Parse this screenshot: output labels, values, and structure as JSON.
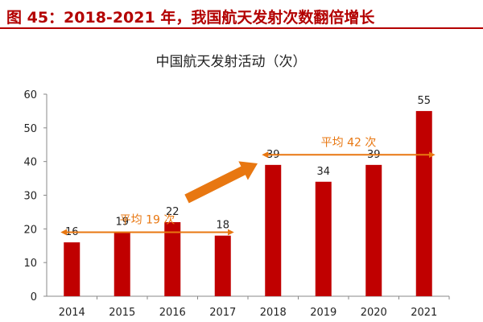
{
  "header": {
    "title": "图 45：2018-2021 年，我国航天发射次数翻倍增长"
  },
  "colors": {
    "bar": "#c00000",
    "annotation": "#e87711",
    "header": "#b30000",
    "axis": "#888888"
  },
  "chart_data": {
    "type": "bar",
    "title": "中国航天发射活动（次）",
    "xlabel": "",
    "ylabel": "",
    "categories": [
      "2014",
      "2015",
      "2016",
      "2017",
      "2018",
      "2019",
      "2020",
      "2021"
    ],
    "values": [
      16,
      19,
      22,
      18,
      39,
      34,
      39,
      55
    ],
    "ylim": [
      0,
      60
    ],
    "yticks": [
      "0",
      "10",
      "20",
      "30",
      "40",
      "50",
      "60"
    ],
    "grid": false,
    "legend": "none",
    "annotations": [
      {
        "text": "平均 19 次",
        "from": "2014",
        "to": "2017",
        "y": 19
      },
      {
        "text": "平均 42 次",
        "from": "2018",
        "to": "2021",
        "y": 42
      }
    ]
  }
}
